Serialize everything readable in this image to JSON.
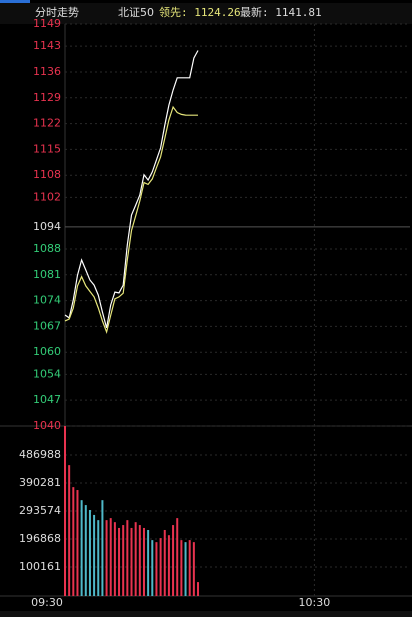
{
  "header": {
    "title": "分时走势",
    "index_name": "北证50",
    "leader": "领先: 1124.26",
    "latest": "最新: 1141.81"
  },
  "chart_data": [
    {
      "type": "line",
      "ylim": [
        1040,
        1149
      ],
      "xlim": [
        0,
        83
      ],
      "yticks": [
        1149,
        1143,
        1136,
        1129,
        1122,
        1115,
        1108,
        1102,
        1094,
        1088,
        1081,
        1074,
        1067,
        1060,
        1054,
        1047,
        1040
      ],
      "ytick_colors": [
        "#e8334f",
        "#e8334f",
        "#e8334f",
        "#e8334f",
        "#e8334f",
        "#e8334f",
        "#e8334f",
        "#e8334f",
        "#dddddd",
        "#33cc77",
        "#33cc77",
        "#33cc77",
        "#33cc77",
        "#33cc77",
        "#33cc77",
        "#33cc77",
        "#e8334f"
      ],
      "grid": true,
      "series": [
        {
          "name": "最新",
          "color": "#ffffff",
          "values": [
            1070.1,
            1069.3,
            1074.2,
            1080.9,
            1085.0,
            1082.3,
            1079.6,
            1078.2,
            1075.5,
            1070.9,
            1066.6,
            1072.8,
            1076.3,
            1076.1,
            1078.2,
            1089.1,
            1097.2,
            1099.9,
            1102.6,
            1108.1,
            1106.7,
            1108.9,
            1112.1,
            1115.4,
            1121.6,
            1127.0,
            1131.1,
            1134.4,
            1134.4,
            1134.4,
            1134.4,
            1139.8,
            1141.81
          ]
        },
        {
          "name": "领先",
          "color": "#e6e67a",
          "values": [
            1068.5,
            1069,
            1072,
            1078,
            1080.5,
            1078,
            1076.5,
            1075,
            1072,
            1068.5,
            1065.5,
            1070,
            1074.5,
            1075,
            1076,
            1085,
            1093,
            1097,
            1101,
            1106,
            1105.5,
            1107,
            1110,
            1113,
            1118,
            1123,
            1126.5,
            1125,
            1124.5,
            1124.3,
            1124.26,
            1124.26,
            1124.26
          ]
        }
      ]
    },
    {
      "type": "bar",
      "ylim": [
        0,
        587150
      ],
      "xlim": [
        0,
        83
      ],
      "yticks": [
        486988,
        390281,
        293574,
        196868,
        100161
      ],
      "xticks": [
        {
          "value": 0,
          "label": "09:30"
        },
        {
          "value": 60,
          "label": "10:30"
        }
      ],
      "grid": true,
      "values": [
        587150,
        452000,
        376000,
        366000,
        331000,
        314000,
        297000,
        280000,
        262000,
        331000,
        262000,
        269000,
        255000,
        235000,
        245000,
        262000,
        235000,
        255000,
        245000,
        235000,
        228000,
        193000,
        186000,
        200000,
        228000,
        210000,
        245000,
        269000,
        193000,
        186000,
        193000,
        186000,
        48000
      ],
      "colors": [
        "#e8334f",
        "#e8334f",
        "#e8334f",
        "#e8334f",
        "#4fb8c8",
        "#4fb8c8",
        "#4fb8c8",
        "#4fb8c8",
        "#4fb8c8",
        "#4fb8c8",
        "#e8334f",
        "#e8334f",
        "#e8334f",
        "#e8334f",
        "#e8334f",
        "#e8334f",
        "#e8334f",
        "#e8334f",
        "#e8334f",
        "#e8334f",
        "#4fb8c8",
        "#4fb8c8",
        "#e8334f",
        "#e8334f",
        "#e8334f",
        "#e8334f",
        "#e8334f",
        "#e8334f",
        "#e8334f",
        "#4fb8c8",
        "#e8334f",
        "#e8334f",
        "#e8334f"
      ]
    }
  ]
}
